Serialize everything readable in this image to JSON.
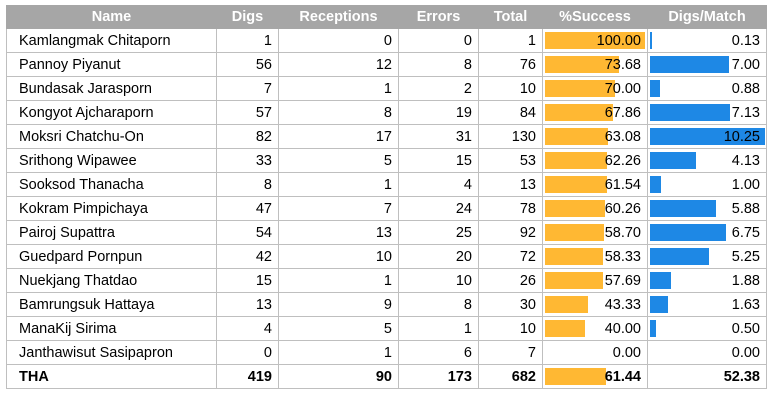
{
  "table": {
    "headers": {
      "name": "Name",
      "digs": "Digs",
      "receptions": "Receptions",
      "errors": "Errors",
      "total": "Total",
      "success": "%Success",
      "digs_per_match": "Digs/Match"
    },
    "rows": [
      {
        "name": "Kamlangmak Chitaporn",
        "digs": "1",
        "receptions": "0",
        "errors": "0",
        "total": "1",
        "success": "100.00",
        "digs_per_match": "0.13"
      },
      {
        "name": "Pannoy Piyanut",
        "digs": "56",
        "receptions": "12",
        "errors": "8",
        "total": "76",
        "success": "73.68",
        "digs_per_match": "7.00"
      },
      {
        "name": "Bundasak Jarasporn",
        "digs": "7",
        "receptions": "1",
        "errors": "2",
        "total": "10",
        "success": "70.00",
        "digs_per_match": "0.88"
      },
      {
        "name": "Kongyot Ajcharaporn",
        "digs": "57",
        "receptions": "8",
        "errors": "19",
        "total": "84",
        "success": "67.86",
        "digs_per_match": "7.13"
      },
      {
        "name": "Moksri Chatchu-On",
        "digs": "82",
        "receptions": "17",
        "errors": "31",
        "total": "130",
        "success": "63.08",
        "digs_per_match": "10.25"
      },
      {
        "name": "Srithong Wipawee",
        "digs": "33",
        "receptions": "5",
        "errors": "15",
        "total": "53",
        "success": "62.26",
        "digs_per_match": "4.13"
      },
      {
        "name": "Sooksod Thanacha",
        "digs": "8",
        "receptions": "1",
        "errors": "4",
        "total": "13",
        "success": "61.54",
        "digs_per_match": "1.00"
      },
      {
        "name": "Kokram Pimpichaya",
        "digs": "47",
        "receptions": "7",
        "errors": "24",
        "total": "78",
        "success": "60.26",
        "digs_per_match": "5.88"
      },
      {
        "name": "Pairoj Supattra",
        "digs": "54",
        "receptions": "13",
        "errors": "25",
        "total": "92",
        "success": "58.70",
        "digs_per_match": "6.75"
      },
      {
        "name": "Guedpard Pornpun",
        "digs": "42",
        "receptions": "10",
        "errors": "20",
        "total": "72",
        "success": "58.33",
        "digs_per_match": "5.25"
      },
      {
        "name": "Nuekjang Thatdao",
        "digs": "15",
        "receptions": "1",
        "errors": "10",
        "total": "26",
        "success": "57.69",
        "digs_per_match": "1.88"
      },
      {
        "name": "Bamrungsuk Hattaya",
        "digs": "13",
        "receptions": "9",
        "errors": "8",
        "total": "30",
        "success": "43.33",
        "digs_per_match": "1.63"
      },
      {
        "name": "ManaKij Sirima",
        "digs": "4",
        "receptions": "5",
        "errors": "1",
        "total": "10",
        "success": "40.00",
        "digs_per_match": "0.50"
      },
      {
        "name": "Janthawisut Sasipapron",
        "digs": "0",
        "receptions": "1",
        "errors": "6",
        "total": "7",
        "success": "0.00",
        "digs_per_match": "0.00"
      }
    ],
    "total_row": {
      "name": "THA",
      "digs": "419",
      "receptions": "90",
      "errors": "173",
      "total": "682",
      "success": "61.44",
      "digs_per_match": "52.38"
    }
  },
  "colors": {
    "header_bg": "#a6a6a6",
    "success_bar": "#ffb833",
    "digs_bar": "#1e88e5"
  }
}
